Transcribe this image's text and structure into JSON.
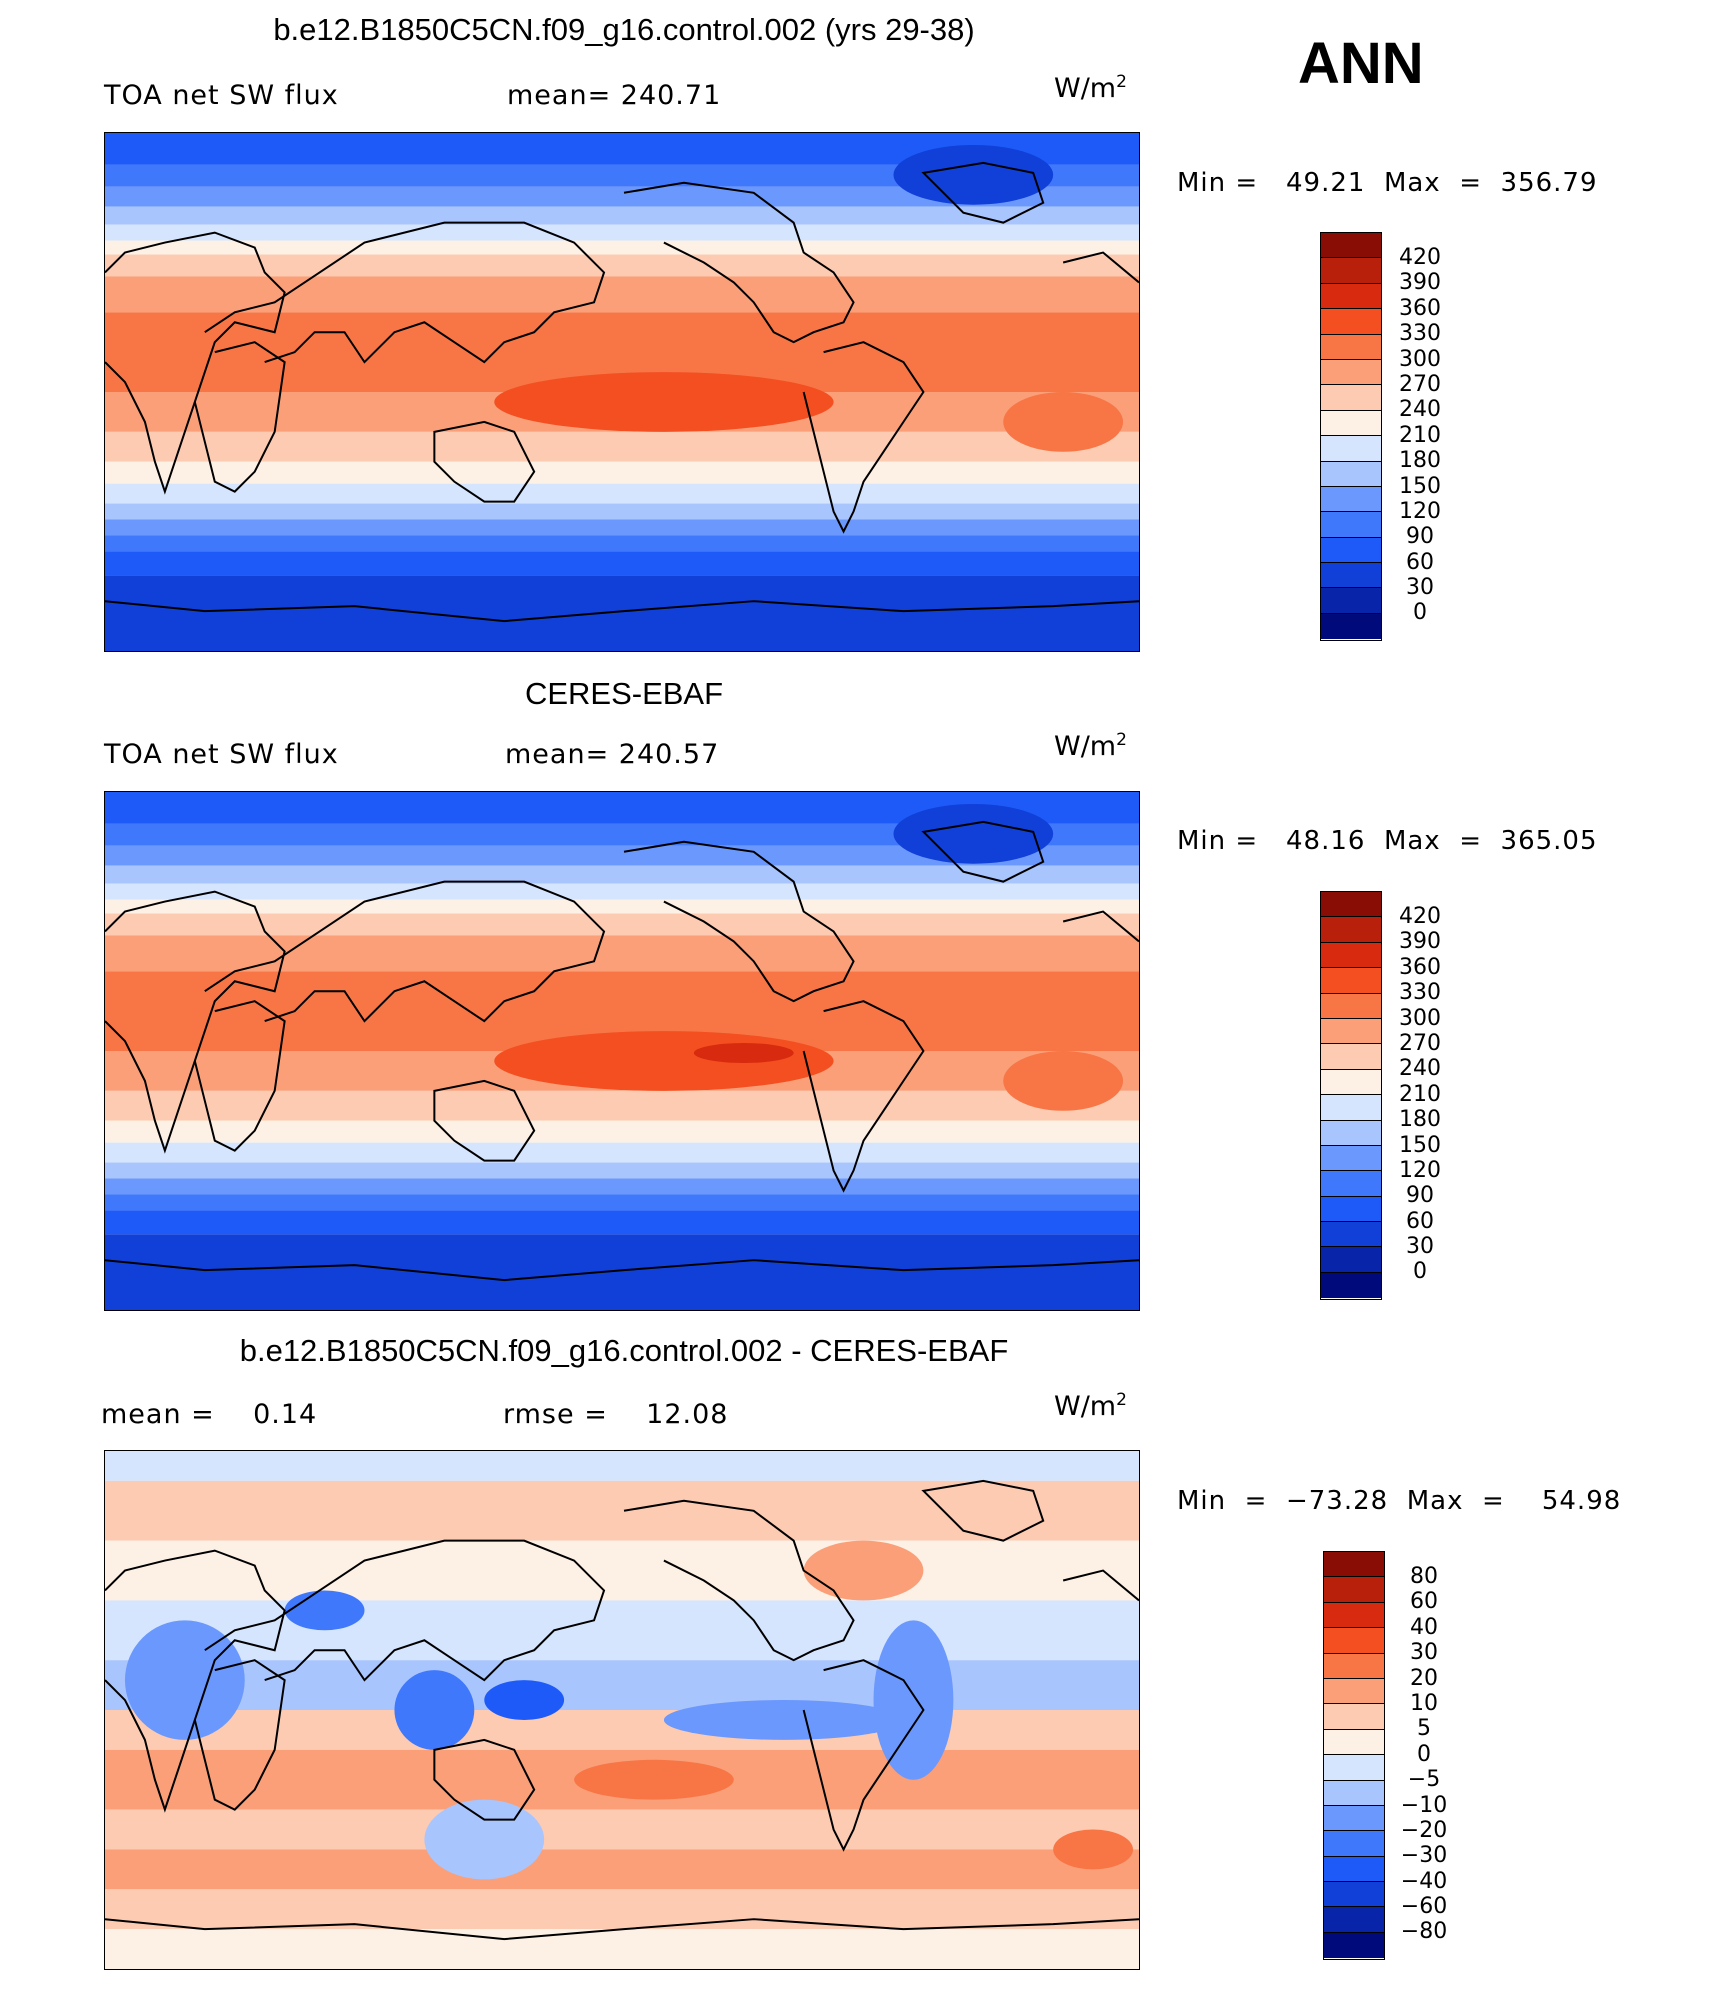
{
  "season": "ANN",
  "units_base": "W/m",
  "units_exp": "2",
  "colors": {
    "abs_palette": [
      "#000a7a",
      "#0824a8",
      "#1040d8",
      "#1e5af8",
      "#3f78fb",
      "#6b98fc",
      "#a9c5fd",
      "#d5e5fd",
      "#fdf0e4",
      "#fccbb2",
      "#fa9f78",
      "#f87545",
      "#f34f20",
      "#d82a0e",
      "#b8200b",
      "#8a0d05"
    ],
    "diff_palette": [
      "#000a7a",
      "#0824a8",
      "#1040d8",
      "#1e5af8",
      "#3f78fb",
      "#6b98fc",
      "#a9c5fd",
      "#d5e5fd",
      "#fdf0e4",
      "#fccbb2",
      "#fa9f78",
      "#f87545",
      "#f34f20",
      "#d82a0e",
      "#b8200b",
      "#8a0d05"
    ],
    "coast": "#000000"
  },
  "panels": [
    {
      "title": "b.e12.B1850C5CN.f09_g16.control.002 (yrs 29-38)",
      "left_label": "TOA net SW flux",
      "mid_label": "mean= 240.71",
      "minmax": "Min =   49.21  Max  =  356.79",
      "colorbar_labels": [
        "420",
        "390",
        "360",
        "330",
        "300",
        "270",
        "240",
        "210",
        "180",
        "150",
        "120",
        "90",
        "60",
        "30",
        "0"
      ]
    },
    {
      "title": "CERES-EBAF",
      "left_label": "TOA net SW flux",
      "mid_label": "mean= 240.57",
      "minmax": "Min =   48.16  Max  =  365.05",
      "colorbar_labels": [
        "420",
        "390",
        "360",
        "330",
        "300",
        "270",
        "240",
        "210",
        "180",
        "150",
        "120",
        "90",
        "60",
        "30",
        "0"
      ]
    },
    {
      "title": "b.e12.B1850C5CN.f09_g16.control.002 - CERES-EBAF",
      "left_label": "mean =    0.14",
      "mid_label": "rmse =    12.08",
      "minmax": "Min  =  −73.28  Max  =    54.98",
      "colorbar_labels": [
        "80",
        "60",
        "40",
        "30",
        "20",
        "10",
        "5",
        "0",
        "−5",
        "−10",
        "−20",
        "−30",
        "−40",
        "−60",
        "−80"
      ]
    }
  ]
}
